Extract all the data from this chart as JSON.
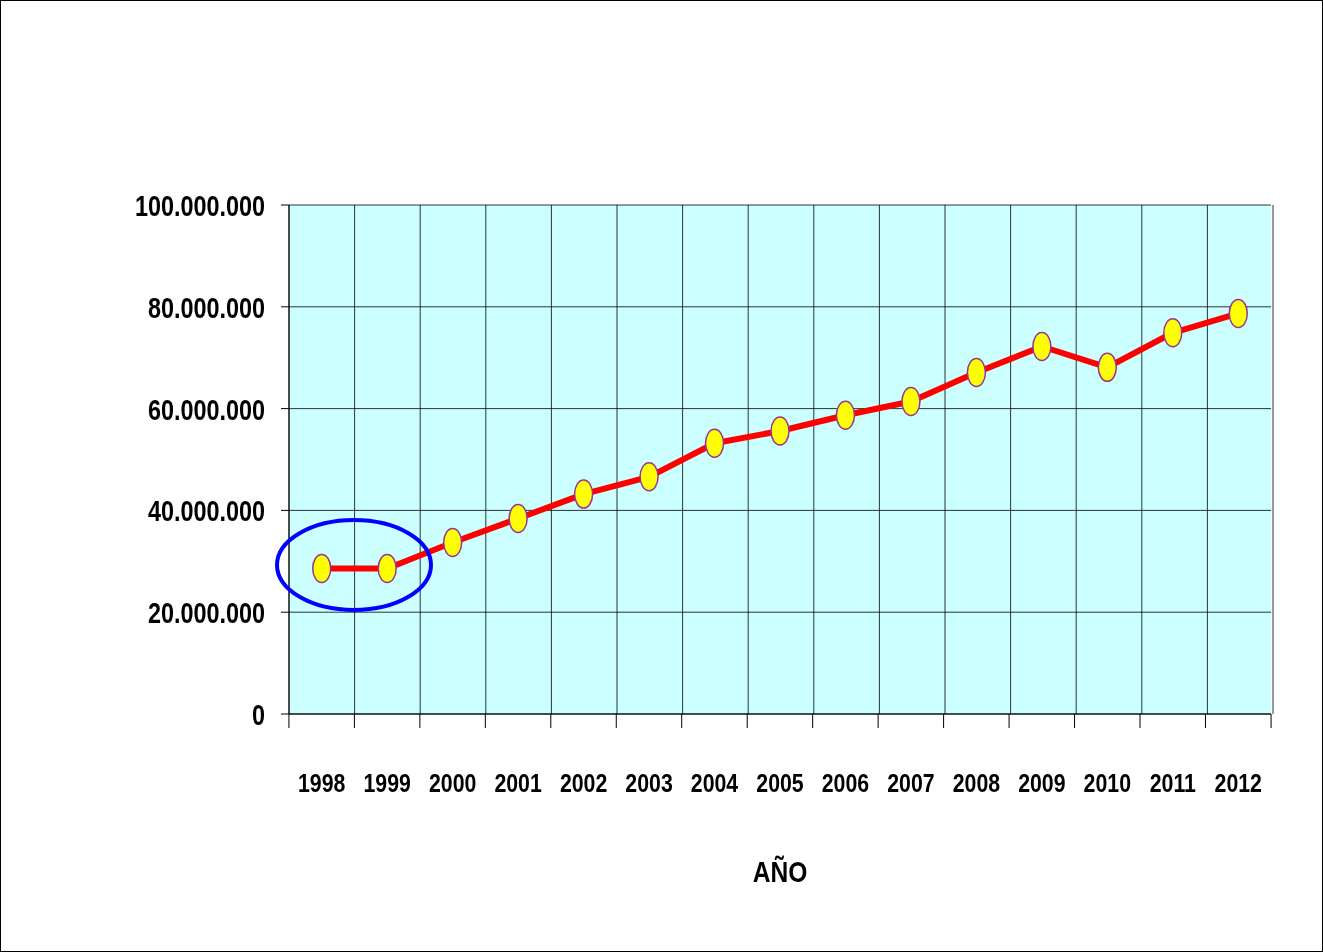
{
  "chart_data": {
    "type": "line",
    "xlabel": "AÑO",
    "categories": [
      "1998",
      "1999",
      "2000",
      "2001",
      "2002",
      "2003",
      "2004",
      "2005",
      "2006",
      "2007",
      "2008",
      "2009",
      "2010",
      "2011",
      "2012"
    ],
    "series": [
      {
        "color": "#ff0000",
        "values": [
          28600000,
          28600000,
          33700000,
          38400000,
          43200000,
          46600000,
          53200000,
          55600000,
          58700000,
          61400000,
          67100000,
          72200000,
          68100000,
          74900000,
          78700000
        ]
      }
    ],
    "ylim": [
      0,
      100000000
    ],
    "yticks": [
      {
        "value": 0,
        "label": "0"
      },
      {
        "value": 20000000,
        "label": "20.000.000"
      },
      {
        "value": 40000000,
        "label": "40.000.000"
      },
      {
        "value": 60000000,
        "label": "60.000.000"
      },
      {
        "value": 80000000,
        "label": "80.000.000"
      },
      {
        "value": 100000000,
        "label": "100.000.000"
      }
    ],
    "grid": true,
    "marker": "circle"
  }
}
